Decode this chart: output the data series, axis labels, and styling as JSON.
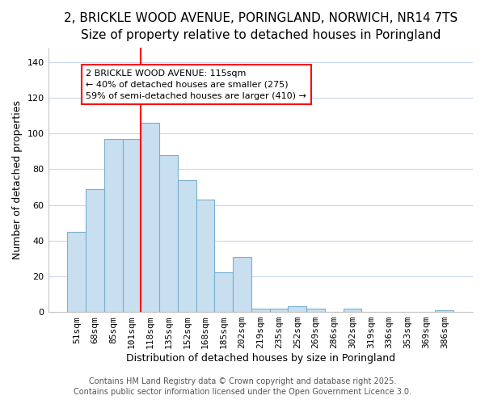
{
  "title_line1": "2, BRICKLE WOOD AVENUE, PORINGLAND, NORWICH, NR14 7TS",
  "title_line2": "Size of property relative to detached houses in Poringland",
  "xlabel": "Distribution of detached houses by size in Poringland",
  "ylabel": "Number of detached properties",
  "categories": [
    "51sqm",
    "68sqm",
    "85sqm",
    "101sqm",
    "118sqm",
    "135sqm",
    "152sqm",
    "168sqm",
    "185sqm",
    "202sqm",
    "219sqm",
    "235sqm",
    "252sqm",
    "269sqm",
    "286sqm",
    "302sqm",
    "319sqm",
    "336sqm",
    "353sqm",
    "369sqm",
    "386sqm"
  ],
  "values": [
    45,
    69,
    97,
    97,
    106,
    88,
    74,
    63,
    22,
    31,
    2,
    2,
    3,
    2,
    0,
    2,
    0,
    0,
    0,
    0,
    1
  ],
  "bar_color": "#c8dff0",
  "bar_edge_color": "#7ab0d0",
  "vline_x": 4,
  "vline_color": "red",
  "annotation_text": "2 BRICKLE WOOD AVENUE: 115sqm\n← 40% of detached houses are smaller (275)\n59% of semi-detached houses are larger (410) →",
  "annotation_box_color": "white",
  "annotation_box_edge": "red",
  "ylim": [
    0,
    148
  ],
  "yticks": [
    0,
    20,
    40,
    60,
    80,
    100,
    120,
    140
  ],
  "footer_line1": "Contains HM Land Registry data © Crown copyright and database right 2025.",
  "footer_line2": "Contains public sector information licensed under the Open Government Licence 3.0.",
  "bg_color": "#ffffff",
  "plot_bg_color": "#ffffff",
  "grid_color": "#c8d8f0",
  "title_fontsize": 11,
  "subtitle_fontsize": 9.5,
  "axis_label_fontsize": 9,
  "tick_fontsize": 8,
  "annotation_fontsize": 8,
  "footer_fontsize": 7
}
